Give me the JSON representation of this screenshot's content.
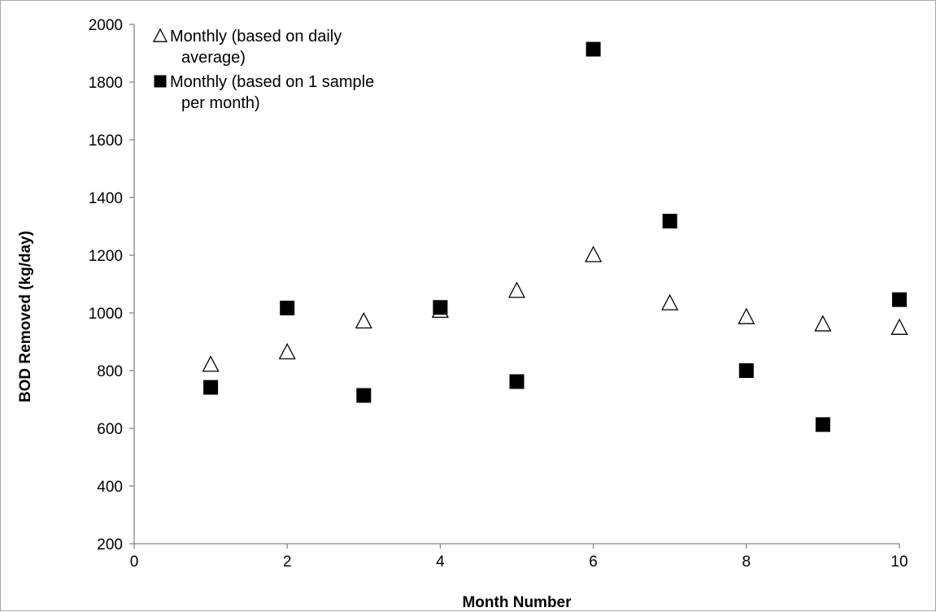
{
  "chart_data": {
    "type": "scatter",
    "title": "",
    "xlabel": "Month Number",
    "ylabel": "BOD Removed (kg/day)",
    "xlim": [
      0,
      10
    ],
    "ylim": [
      200,
      2000
    ],
    "xticks": [
      0,
      2,
      4,
      6,
      8,
      10
    ],
    "yticks": [
      200,
      400,
      600,
      800,
      1000,
      1200,
      1400,
      1600,
      1800,
      2000
    ],
    "grid": false,
    "legend_position": "top-left",
    "series": [
      {
        "name": "Monthly (based on daily average)",
        "legend_lines": [
          "Monthly (based on daily",
          "average)"
        ],
        "marker": "open-triangle",
        "color": "#000000",
        "x": [
          1,
          2,
          3,
          4,
          5,
          6,
          7,
          8,
          9,
          10
        ],
        "y": [
          822,
          865,
          972,
          1009,
          1078,
          1202,
          1035,
          987,
          962,
          950
        ]
      },
      {
        "name": "Monthly (based on 1 sample per month)",
        "legend_lines": [
          "Monthly (based on 1 sample",
          "per month)"
        ],
        "marker": "filled-square",
        "color": "#000000",
        "x": [
          1,
          2,
          3,
          4,
          5,
          6,
          7,
          8,
          9,
          10
        ],
        "y": [
          742,
          1017,
          714,
          1019,
          762,
          1914,
          1318,
          800,
          613,
          1046
        ]
      }
    ]
  }
}
